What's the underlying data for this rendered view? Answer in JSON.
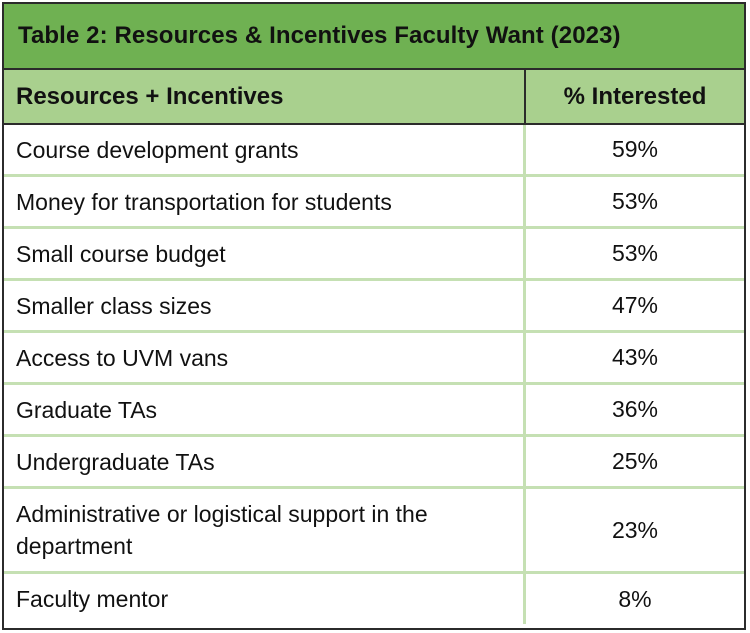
{
  "table": {
    "title": "Table 2:  Resources & Incentives Faculty Want (2023)",
    "columns": [
      "Resources + Incentives",
      "% Interested"
    ],
    "rows": [
      {
        "resource": "Course development grants",
        "percent": "59%"
      },
      {
        "resource": "Money for transportation for students",
        "percent": "53%"
      },
      {
        "resource": "Small course budget",
        "percent": "53%"
      },
      {
        "resource": "Smaller class sizes",
        "percent": "47%"
      },
      {
        "resource": "Access to UVM vans",
        "percent": "43%"
      },
      {
        "resource": "Graduate TAs",
        "percent": "36%"
      },
      {
        "resource": "Undergraduate TAs",
        "percent": "25%"
      },
      {
        "resource": "Administrative or logistical support in the department",
        "percent": "23%"
      },
      {
        "resource": "Faculty mentor",
        "percent": "8%"
      }
    ],
    "colors": {
      "title_background": "#6fb152",
      "header_background": "#a9d08e",
      "row_divider": "#c5e0b3",
      "border": "#2b2b2b"
    }
  }
}
